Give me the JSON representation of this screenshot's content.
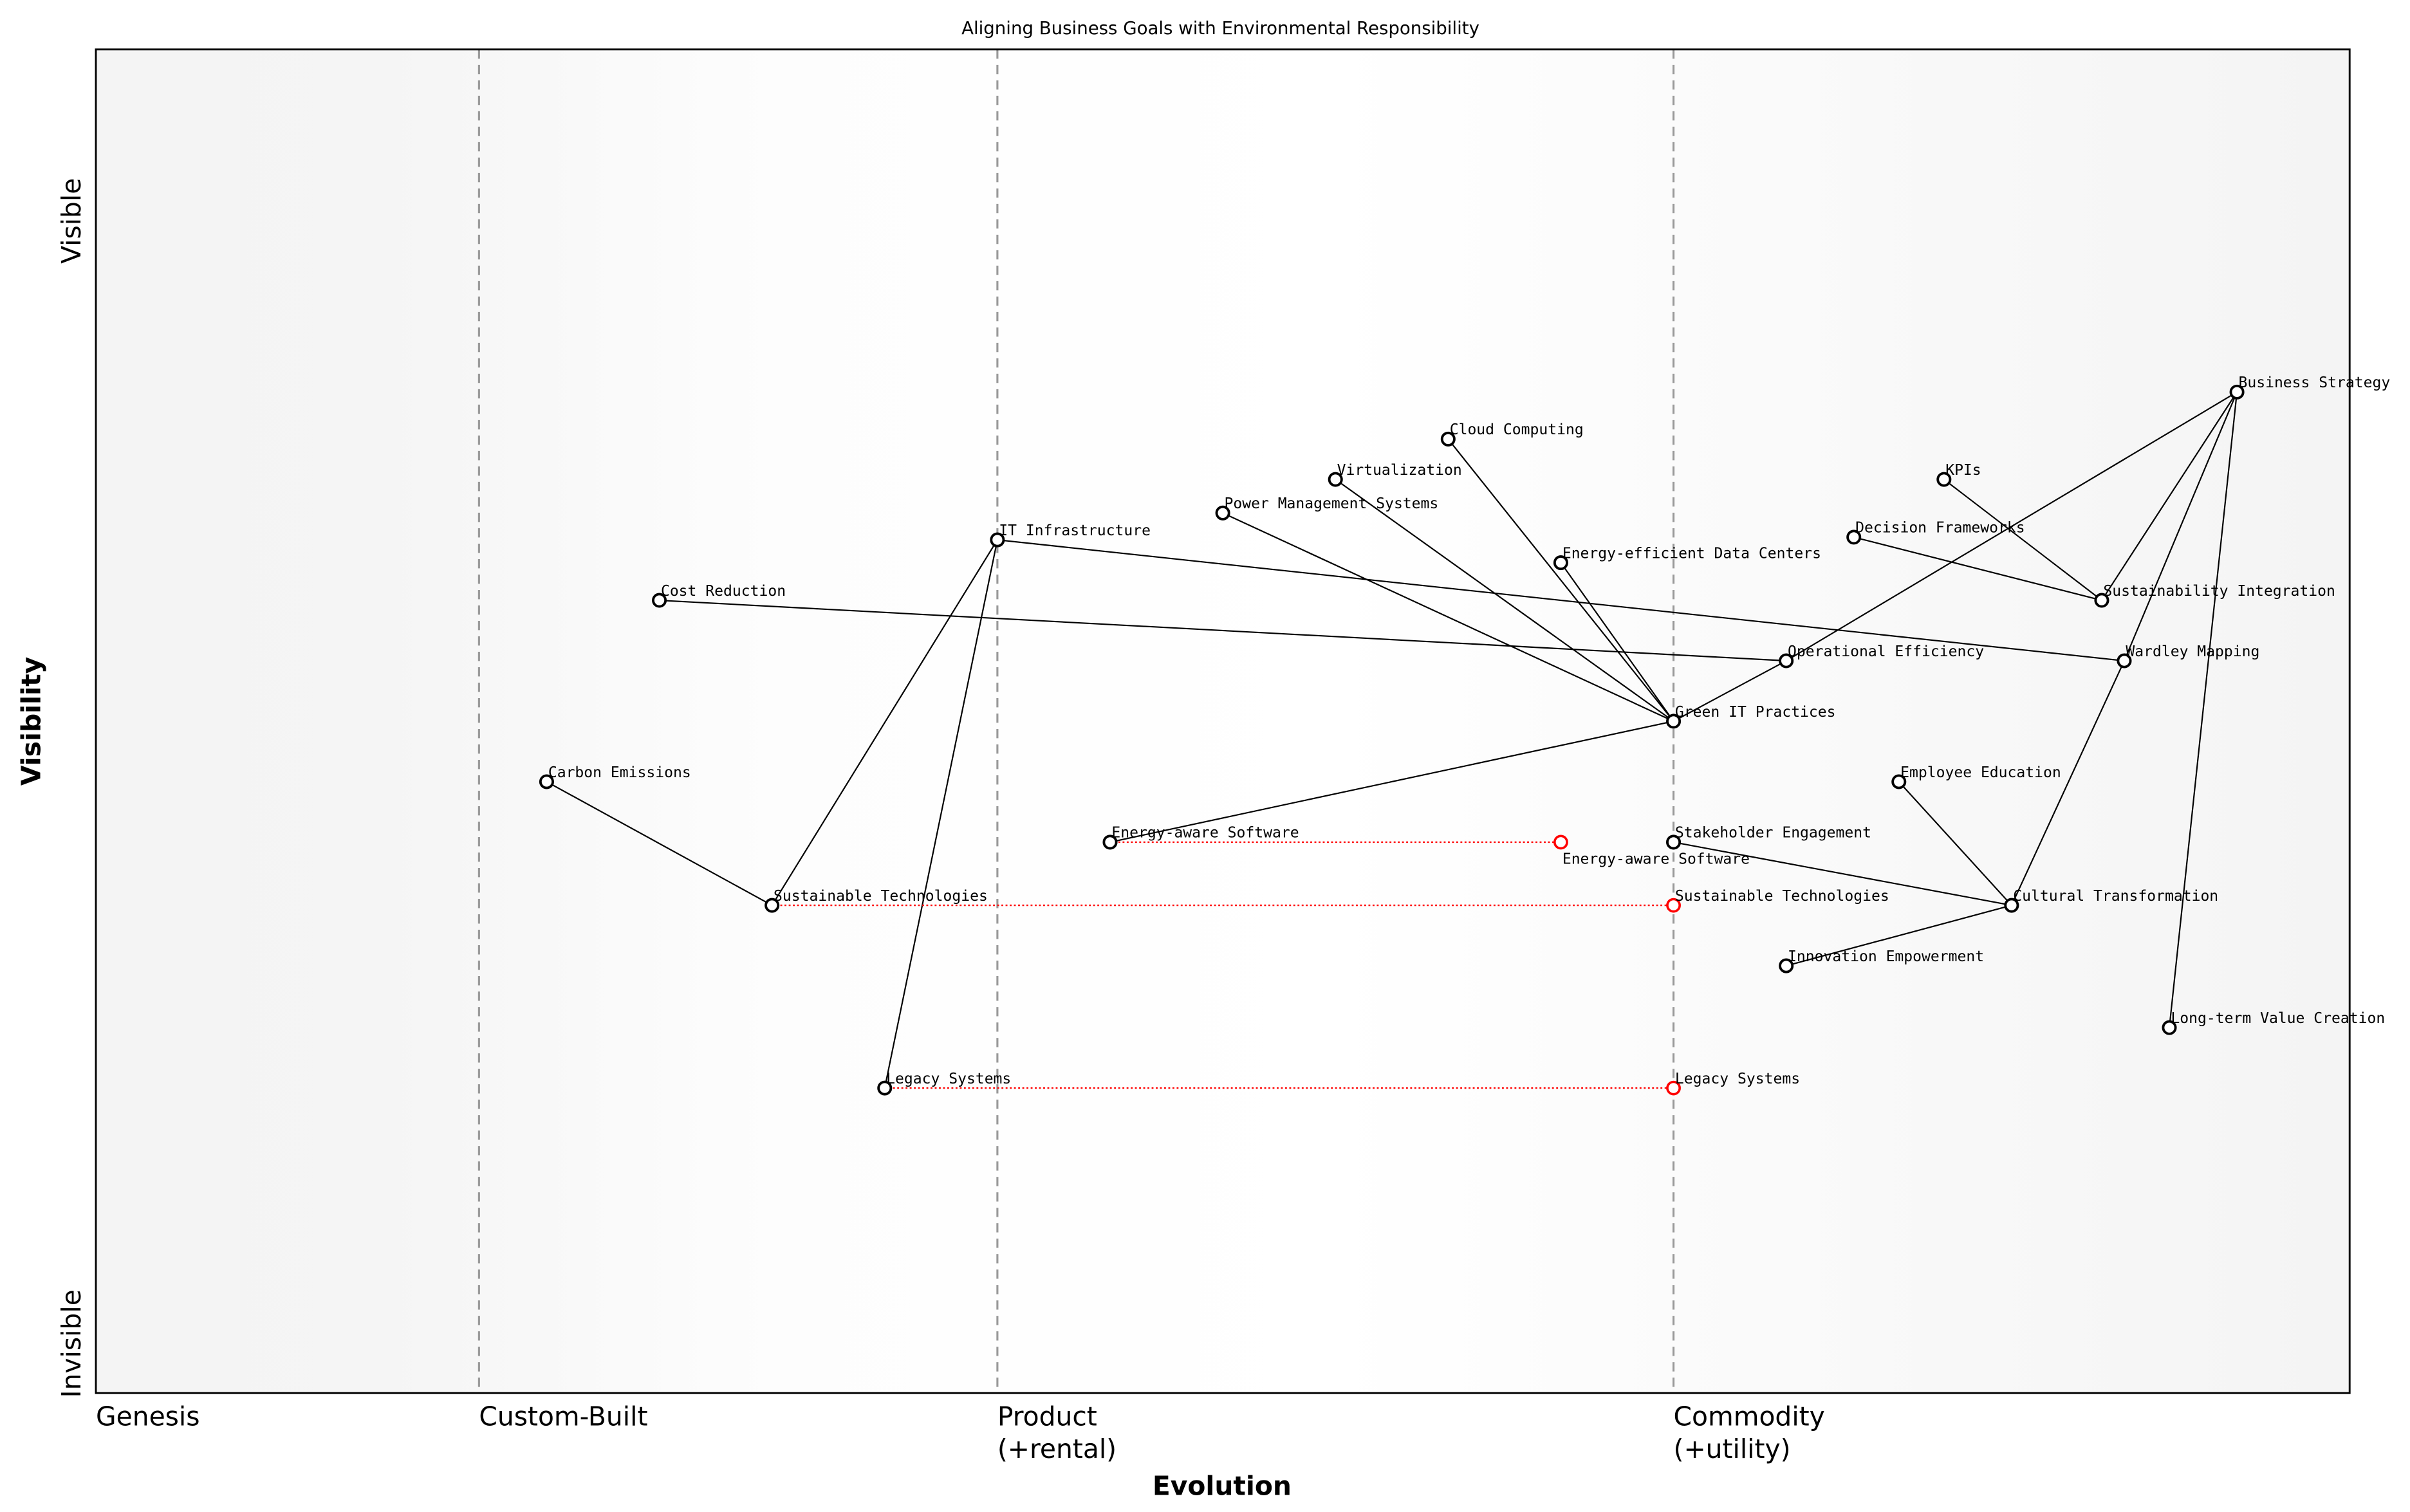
{
  "title": "Aligning Business Goals with Environmental Responsibility",
  "xlabel": "Evolution",
  "ylabel": "Visibility",
  "y_ticks": {
    "top": "Visible",
    "bottom": "Invisible"
  },
  "stages": [
    {
      "name": "Genesis",
      "x": 0.0,
      "line": 0,
      "sub": ""
    },
    {
      "name": "Custom-Built",
      "x": 0.17,
      "line": 1,
      "sub": ""
    },
    {
      "name": "Product",
      "x": 0.4,
      "line": 1,
      "sub": "(+rental)"
    },
    {
      "name": "Commodity",
      "x": 0.7,
      "line": 1,
      "sub": "(+utility)"
    }
  ],
  "colors": {
    "component": "#000000",
    "evolved": "#ff0000",
    "link": "#000000",
    "stage_line": "#999999"
  },
  "components": [
    {
      "name": "Business Strategy",
      "evolution": 0.95,
      "visibility": 0.745
    },
    {
      "name": "Cloud Computing",
      "evolution": 0.6,
      "visibility": 0.71
    },
    {
      "name": "Virtualization",
      "evolution": 0.55,
      "visibility": 0.68
    },
    {
      "name": "KPIs",
      "evolution": 0.82,
      "visibility": 0.68
    },
    {
      "name": "Power Management Systems",
      "evolution": 0.5,
      "visibility": 0.655
    },
    {
      "name": "IT Infrastructure",
      "evolution": 0.4,
      "visibility": 0.635
    },
    {
      "name": "Decision Frameworks",
      "evolution": 0.78,
      "visibility": 0.637
    },
    {
      "name": "Energy-efficient Data Centers",
      "evolution": 0.65,
      "visibility": 0.618
    },
    {
      "name": "Cost Reduction",
      "evolution": 0.25,
      "visibility": 0.59
    },
    {
      "name": "Sustainability Integration",
      "evolution": 0.89,
      "visibility": 0.59
    },
    {
      "name": "Operational Efficiency",
      "evolution": 0.75,
      "visibility": 0.545
    },
    {
      "name": "Wardley Mapping",
      "evolution": 0.9,
      "visibility": 0.545
    },
    {
      "name": "Green IT Practices",
      "evolution": 0.7,
      "visibility": 0.5
    },
    {
      "name": "Carbon Emissions",
      "evolution": 0.2,
      "visibility": 0.455
    },
    {
      "name": "Employee Education",
      "evolution": 0.8,
      "visibility": 0.455
    },
    {
      "name": "Energy-aware Software",
      "evolution": 0.45,
      "visibility": 0.41
    },
    {
      "name": "Stakeholder Engagement",
      "evolution": 0.7,
      "visibility": 0.41
    },
    {
      "name": "Sustainable Technologies",
      "evolution": 0.3,
      "visibility": 0.363
    },
    {
      "name": "Cultural Transformation",
      "evolution": 0.85,
      "visibility": 0.363
    },
    {
      "name": "Innovation Empowerment",
      "evolution": 0.75,
      "visibility": 0.318
    },
    {
      "name": "Long-term Value Creation",
      "evolution": 0.92,
      "visibility": 0.272
    },
    {
      "name": "Legacy Systems",
      "evolution": 0.35,
      "visibility": 0.227
    }
  ],
  "evolutions": [
    {
      "name": "Energy-aware Software",
      "to": 0.65
    },
    {
      "name": "Sustainable Technologies",
      "to": 0.7
    },
    {
      "name": "Legacy Systems",
      "to": 0.7
    }
  ],
  "links": [
    [
      "IT Infrastructure",
      "Sustainable Technologies"
    ],
    [
      "IT Infrastructure",
      "Legacy Systems"
    ],
    [
      "IT Infrastructure",
      "Wardley Mapping"
    ],
    [
      "Cost Reduction",
      "Operational Efficiency"
    ],
    [
      "Carbon Emissions",
      "Sustainable Technologies"
    ],
    [
      "Green IT Practices",
      "Cloud Computing"
    ],
    [
      "Green IT Practices",
      "Virtualization"
    ],
    [
      "Green IT Practices",
      "Power Management Systems"
    ],
    [
      "Green IT Practices",
      "Energy-efficient Data Centers"
    ],
    [
      "Green IT Practices",
      "Energy-aware Software"
    ],
    [
      "Green IT Practices",
      "Operational Efficiency"
    ],
    [
      "Operational Efficiency",
      "Business Strategy"
    ],
    [
      "Business Strategy",
      "Sustainability Integration"
    ],
    [
      "Business Strategy",
      "Wardley Mapping"
    ],
    [
      "Business Strategy",
      "Long-term Value Creation"
    ],
    [
      "KPIs",
      "Sustainability Integration"
    ],
    [
      "Decision Frameworks",
      "Sustainability Integration"
    ],
    [
      "Wardley Mapping",
      "Cultural Transformation"
    ],
    [
      "Employee Education",
      "Cultural Transformation"
    ],
    [
      "Stakeholder Engagement",
      "Cultural Transformation"
    ],
    [
      "Innovation Empowerment",
      "Cultural Transformation"
    ]
  ]
}
